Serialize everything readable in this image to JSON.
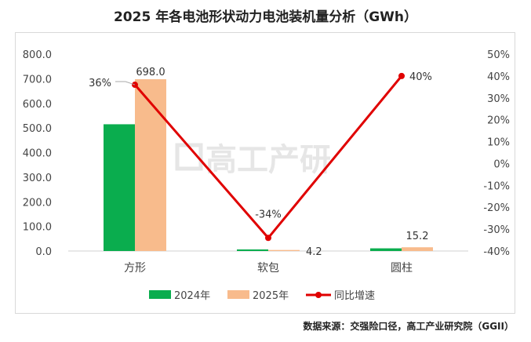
{
  "title": "2025 年各电池形状动力电池装机量分析（GWh）",
  "source": "数据来源：交强险口径，高工产业研究院（GGII）",
  "watermark": "高工产研",
  "colors": {
    "series_2024": "#0aad4e",
    "series_2025": "#f8bb8c",
    "growth_line": "#e00000"
  },
  "chart_data": {
    "type": "bar",
    "categories": [
      "方形",
      "软包",
      "圆柱"
    ],
    "series": [
      {
        "name": "2024年",
        "values": [
          515,
          6.4,
          10.9
        ]
      },
      {
        "name": "2025年",
        "values": [
          698.0,
          4.2,
          15.2
        ]
      }
    ],
    "growth": {
      "name": "同比增速",
      "type": "line",
      "values": [
        36,
        -34,
        40
      ]
    },
    "bar_labels_2025": [
      "698.0",
      "4.2",
      "15.2"
    ],
    "growth_labels": [
      "36%",
      "-34%",
      "40%"
    ],
    "ylim": [
      0,
      800
    ],
    "y_ticks": [
      "0.0",
      "100.0",
      "200.0",
      "300.0",
      "400.0",
      "500.0",
      "600.0",
      "700.0",
      "800.0"
    ],
    "y2lim": [
      -40,
      50
    ],
    "y2_ticks": [
      "-40%",
      "-30%",
      "-20%",
      "-10%",
      "0%",
      "10%",
      "20%",
      "30%",
      "40%",
      "50%"
    ],
    "legend_position": "bottom",
    "grid": false
  }
}
